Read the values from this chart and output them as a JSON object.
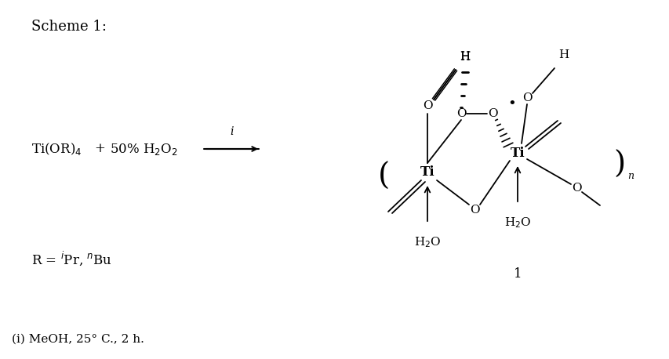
{
  "background_color": "#ffffff",
  "title": "Scheme 1:",
  "title_fontsize": 13,
  "footnote": "(i) MeOH, 25° C., 2 h.",
  "footnote_fontsize": 11,
  "r_label": "R = $^{i}$Pr, $^{n}$Bu",
  "compound_label": "1"
}
